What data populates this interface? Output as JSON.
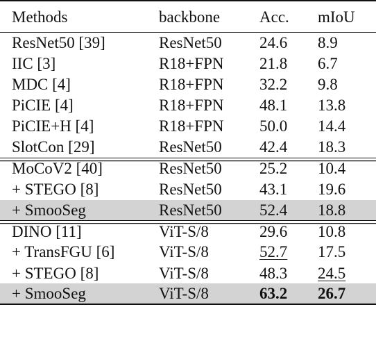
{
  "table": {
    "headers": [
      "Methods",
      "backbone",
      "Acc.",
      "mIoU"
    ],
    "groups": [
      {
        "rows": [
          {
            "method": "ResNet50 [39]",
            "backbone": "ResNet50",
            "acc": "24.6",
            "miou": "8.9"
          },
          {
            "method": "IIC [3]",
            "backbone": "R18+FPN",
            "acc": "21.8",
            "miou": "6.7"
          },
          {
            "method": "MDC [4]",
            "backbone": "R18+FPN",
            "acc": "32.2",
            "miou": "9.8"
          },
          {
            "method": "PiCIE [4]",
            "backbone": "R18+FPN",
            "acc": "48.1",
            "miou": "13.8"
          },
          {
            "method": "PiCIE+H [4]",
            "backbone": "R18+FPN",
            "acc": "50.0",
            "miou": "14.4"
          },
          {
            "method": "SlotCon [29]",
            "backbone": "ResNet50",
            "acc": "42.4",
            "miou": "18.3"
          }
        ]
      },
      {
        "rows": [
          {
            "method": "MoCoV2 [40]",
            "backbone": "ResNet50",
            "acc": "25.2",
            "miou": "10.4"
          },
          {
            "method": "+ STEGO [8]",
            "backbone": "ResNet50",
            "acc": "43.1",
            "miou": "19.6"
          },
          {
            "method": "+ SmooSeg",
            "backbone": "ResNet50",
            "acc": "52.4",
            "miou": "18.8",
            "highlight": true
          }
        ]
      },
      {
        "rows": [
          {
            "method": "DINO [11]",
            "backbone": "ViT-S/8",
            "acc": "29.6",
            "miou": "10.8"
          },
          {
            "method": "+ TransFGU [6]",
            "backbone": "ViT-S/8",
            "acc": "52.7",
            "miou": "17.5",
            "acc_style": "underline"
          },
          {
            "method": "+ STEGO [8]",
            "backbone": "ViT-S/8",
            "acc": "48.3",
            "miou": "24.5",
            "miou_style": "underline"
          },
          {
            "method": "+ SmooSeg",
            "backbone": "ViT-S/8",
            "acc": "63.2",
            "miou": "26.7",
            "highlight": true,
            "acc_style": "bold",
            "miou_style": "bold"
          }
        ]
      }
    ]
  }
}
